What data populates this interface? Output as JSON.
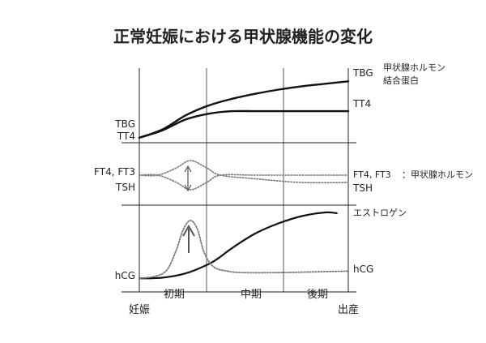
{
  "chart_data": {
    "type": "line",
    "title": "正常妊娠における甲状腺機能の変化",
    "periods": [
      "初期",
      "中期",
      "後期"
    ],
    "x_start_label": "妊娠",
    "x_end_label": "出産",
    "panels": [
      {
        "id": "top",
        "left_labels": [
          "TBG",
          "TT4"
        ],
        "series": [
          {
            "name": "TBG",
            "right_label": "TBG",
            "note_lines": [
              "甲状腺ホルモン",
              "結合蛋白"
            ],
            "x": [
              0,
              1,
              2,
              3,
              4,
              5,
              6,
              7,
              8,
              9
            ],
            "y": [
              0,
              10,
              27,
              39,
              47,
              53,
              58,
              62,
              65,
              68
            ]
          },
          {
            "name": "TT4",
            "right_label": "TT4",
            "x": [
              0,
              1,
              2,
              3,
              4,
              5,
              6,
              7,
              8,
              9
            ],
            "y": [
              0,
              9,
              22,
              29,
              32,
              32,
              32,
              32,
              32,
              32
            ]
          }
        ],
        "ylim": [
          -6,
          80
        ]
      },
      {
        "id": "middle",
        "left_labels": [
          "FT4, FT3",
          "TSH"
        ],
        "series": [
          {
            "name": "FT4, FT3",
            "right_label": "FT4, FT3",
            "note": "：甲状腺ホルモン",
            "x": [
              0,
              0.8,
              1.6,
              2.2,
              2.9,
              3.5,
              5,
              7,
              9
            ],
            "y": [
              0,
              0,
              2,
              4,
              2,
              0,
              -1,
              -2,
              -2
            ]
          },
          {
            "name": "TSH",
            "right_label": "TSH",
            "x": [
              0,
              0.8,
              1.6,
              2.2,
              2.9,
              3.5,
              5,
              7,
              9
            ],
            "y": [
              0,
              0,
              -2,
              -4,
              -2,
              0,
              0,
              0,
              0
            ]
          }
        ],
        "ylim": [
          -8,
          8
        ]
      },
      {
        "id": "bottom",
        "left_labels": [
          "hCG"
        ],
        "series": [
          {
            "name": "エストロゲン",
            "right_label": "エストロゲン",
            "x": [
              0,
              1,
              2,
              3,
              3.5,
              4,
              5,
              6,
              7,
              8,
              8.5
            ],
            "y": [
              0,
              1,
              7,
              20,
              30,
              42,
              62,
              76,
              86,
              91,
              90
            ]
          },
          {
            "name": "hCG",
            "right_label": "hCG",
            "x": [
              0,
              0.7,
              1.2,
              1.6,
              1.9,
              2.2,
              2.5,
              2.8,
              3.2,
              3.8,
              4.5,
              6,
              7.5,
              9
            ],
            "y": [
              0,
              3,
              12,
              40,
              68,
              80,
              68,
              35,
              16,
              10,
              8,
              8,
              9,
              10
            ]
          }
        ],
        "ylim": [
          -3,
          100
        ]
      }
    ],
    "annotations": [
      "↕ (FT4, FT3 / TSH)",
      "↑ (hCG)"
    ]
  }
}
